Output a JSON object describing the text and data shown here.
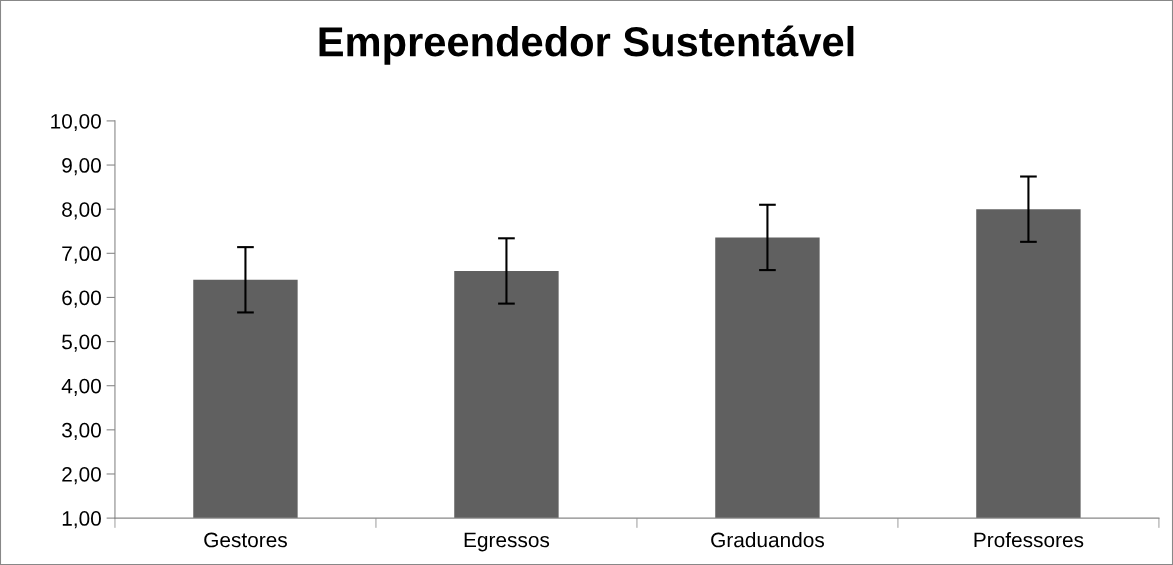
{
  "chart_data": {
    "type": "bar",
    "title": "Empreendedor Sustentável",
    "categories": [
      "Gestores",
      "Egressos",
      "Graduandos",
      "Professores"
    ],
    "values": [
      6.4,
      6.6,
      7.36,
      8.0
    ],
    "errors": [
      0.74,
      0.74,
      0.74,
      0.74
    ],
    "color": "#606060",
    "ylim": [
      1,
      10
    ],
    "yticks": [
      {
        "value": 1,
        "label": "1,00"
      },
      {
        "value": 2,
        "label": "2,00"
      },
      {
        "value": 3,
        "label": "3,00"
      },
      {
        "value": 4,
        "label": "4,00"
      },
      {
        "value": 5,
        "label": "5,00"
      },
      {
        "value": 6,
        "label": "6,00"
      },
      {
        "value": 7,
        "label": "7,00"
      },
      {
        "value": 8,
        "label": "8,00"
      },
      {
        "value": 9,
        "label": "9,00"
      },
      {
        "value": 10,
        "label": "10,00"
      }
    ],
    "grid": false
  }
}
